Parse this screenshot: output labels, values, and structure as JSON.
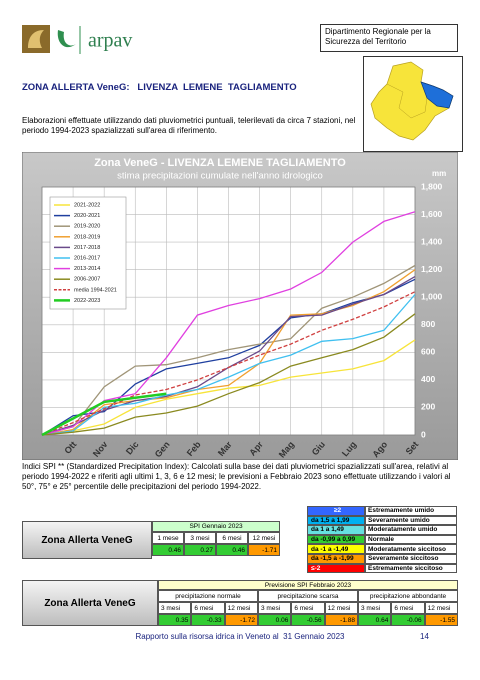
{
  "header": {
    "logo_text": "arpav",
    "department": "Dipartimento Regionale per la Sicurezza del Territorio"
  },
  "title": "ZONA ALLERTA VeneG:   LIVENZA  LEMENE  TAGLIAMENTO",
  "intro": "Elaborazioni effettuate utilizzando dati pluviometrici puntuali, telerilevati da circa 7 stazioni, nel periodo 1994-2023 spazializzati sull'area di riferimento.",
  "chart_data": {
    "type": "line",
    "title": "Zona VeneG - LIVENZA  LEMENE  TAGLIAMENTO",
    "subtitle": "stima precipitazioni cumulate nell'anno idrologico",
    "y_label": "mm",
    "categories": [
      null,
      "Ott",
      "Nov",
      "Dic",
      "Gen",
      "Feb",
      "Mar",
      "Apr",
      "Mag",
      "Giu",
      "Lug",
      "Ago",
      "Set"
    ],
    "ylim": [
      0,
      1800
    ],
    "yticks": [
      0,
      200,
      400,
      600,
      800,
      {
        "value": 1000,
        "label": "1,000"
      },
      {
        "value": 1200,
        "label": "1,200"
      },
      {
        "value": 1400,
        "label": "1,400"
      },
      {
        "value": 1600,
        "label": "1,600"
      },
      {
        "value": 1800,
        "label": "1,800"
      }
    ],
    "grid": true,
    "series": [
      {
        "name": "2021-2022",
        "color": "#f7e43a",
        "values": [
          0,
          30,
          80,
          200,
          260,
          300,
          340,
          360,
          420,
          450,
          480,
          540,
          690
        ]
      },
      {
        "name": "2020-2021",
        "color": "#1f3f9f",
        "values": [
          0,
          140,
          170,
          370,
          480,
          520,
          560,
          650,
          850,
          880,
          960,
          1020,
          1130
        ]
      },
      {
        "name": "2019-2020",
        "color": "#a09578",
        "values": [
          0,
          60,
          350,
          500,
          510,
          560,
          620,
          660,
          700,
          920,
          1000,
          1100,
          1230
        ]
      },
      {
        "name": "2018-2019",
        "color": "#f0a030",
        "values": [
          0,
          40,
          220,
          250,
          270,
          330,
          360,
          520,
          870,
          880,
          940,
          1040,
          1200
        ]
      },
      {
        "name": "2017-2018",
        "color": "#6a4a8a",
        "values": [
          0,
          70,
          180,
          250,
          280,
          350,
          490,
          610,
          860,
          870,
          950,
          1020,
          1150
        ]
      },
      {
        "name": "2016-2017",
        "color": "#40c0f0",
        "values": [
          0,
          30,
          200,
          230,
          290,
          330,
          420,
          520,
          580,
          680,
          700,
          760,
          1020
        ]
      },
      {
        "name": "2013-2014",
        "color": "#e040e0",
        "values": [
          0,
          60,
          250,
          300,
          560,
          870,
          940,
          990,
          1060,
          1180,
          1400,
          1550,
          1620
        ]
      },
      {
        "name": "2006-2007",
        "color": "#8a8a20",
        "values": [
          0,
          20,
          50,
          130,
          160,
          210,
          300,
          380,
          500,
          560,
          620,
          710,
          880
        ]
      },
      {
        "name": "media 1994-2021",
        "color": "#d04040",
        "dashed": true,
        "values": [
          0,
          90,
          190,
          290,
          330,
          400,
          490,
          580,
          660,
          760,
          840,
          930,
          1040
        ]
      },
      {
        "name": "2022-2023",
        "color": "#22cc22",
        "width": 2.5,
        "values": [
          0,
          120,
          240,
          270,
          300,
          null,
          null,
          null,
          null,
          null,
          null,
          null,
          null
        ]
      }
    ]
  },
  "spi_text": "Indici SPI ** (Standardized Precipitation Index): Calcolati sulla base dei dati pluviometrici spazializzati sull'area, relativi al periodo 1994-2022 e riferiti agli ultimi 1, 3, 6 e 12 mesi; le previsioni a Febbraio 2023 sono effettuate utilizzando i valori al 50°, 75° e 25° percentile delle precipitazioni del periodo 1994-2022.",
  "spi_table": {
    "zone": "Zona Allerta VeneG",
    "title": "SPI Gennaio 2023",
    "headers": [
      "1 mese",
      "3 mesi",
      "6 mesi",
      "12 mesi"
    ],
    "values": [
      0.46,
      0.27,
      0.46,
      -1.71
    ],
    "colors": [
      "#33cc33",
      "#33cc33",
      "#33cc33",
      "#ff9900"
    ]
  },
  "spi_legend": [
    {
      "range": "≥2",
      "label": "Estremamente umido",
      "color": "#3366ff"
    },
    {
      "range": "da 1,5 a 1,99",
      "label": "Severamente umido",
      "color": "#00b0f0"
    },
    {
      "range": "da 1 a 1,49",
      "label": "Moderatamente umido",
      "color": "#66e0e0"
    },
    {
      "range": "da -0,99 a 0,99",
      "label": "Normale",
      "color": "#33cc33"
    },
    {
      "range": "da -1 a -1,49",
      "label": "Moderatamente siccitoso",
      "color": "#ffff00"
    },
    {
      "range": "da -1,5 a -1,99",
      "label": "Severamente siccitoso",
      "color": "#ff9900"
    },
    {
      "range": "≤-2",
      "label": "Estremamente siccitoso",
      "color": "#ff0000"
    }
  ],
  "forecast_table": {
    "zone": "Zona Allerta VeneG",
    "title": "Previsione SPI Febbraio 2023",
    "groups": [
      {
        "name": "precipitazione normale",
        "headers": [
          "3 mesi",
          "6 mesi",
          "12 mesi"
        ],
        "values": [
          0.35,
          -0.33,
          -1.72
        ],
        "colors": [
          "#33cc33",
          "#33cc33",
          "#ff9900"
        ]
      },
      {
        "name": "precipitazione scarsa",
        "headers": [
          "3 mesi",
          "6 mesi",
          "12 mesi"
        ],
        "values": [
          0.06,
          -0.56,
          -1.88
        ],
        "colors": [
          "#33cc33",
          "#33cc33",
          "#ff9900"
        ]
      },
      {
        "name": "precipitazione abbondante",
        "headers": [
          "3 mesi",
          "6 mesi",
          "12 mesi"
        ],
        "values": [
          0.64,
          -0.06,
          -1.55
        ],
        "colors": [
          "#33cc33",
          "#33cc33",
          "#ff9900"
        ]
      }
    ]
  },
  "footer": {
    "text": "Rapporto sulla risorsa idrica in Veneto al  31 Gennaio 2023",
    "page": 14
  }
}
